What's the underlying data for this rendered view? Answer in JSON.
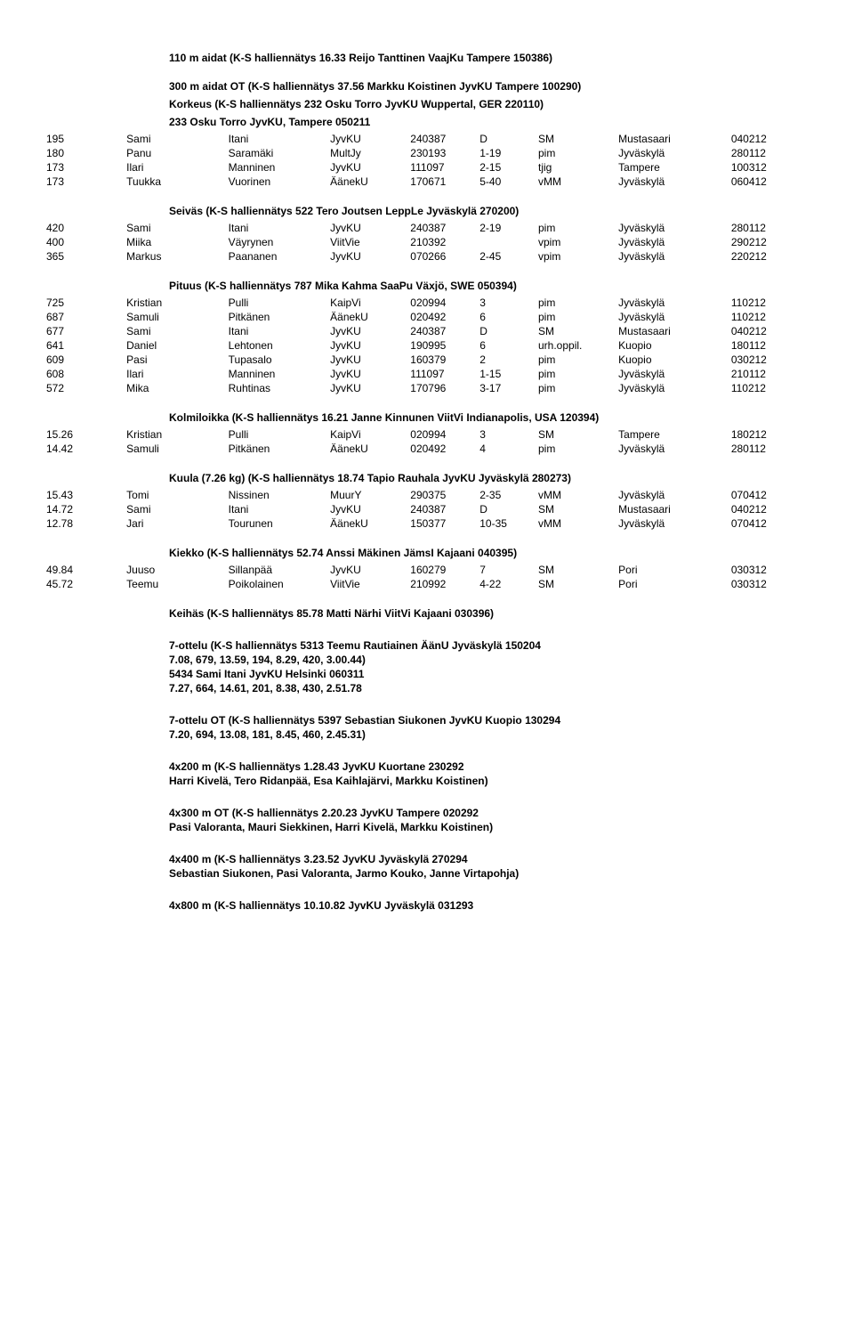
{
  "sections": [
    {
      "title": "110 m aidat (K-S halliennätys 16.33 Reijo Tanttinen VaajKu Tampere 150386)",
      "subtitles": [
        "300 m aidat OT (K-S halliennätys 37.56 Markku Koistinen JyvKU Tampere 100290)",
        "Korkeus (K-S halliennätys 232 Osku Torro JyvKU Wuppertal, GER 220110)",
        "233 Osku Torro  JyvKU, Tampere 050211"
      ],
      "rows": [
        [
          "195",
          "Sami",
          "Itani",
          "JyvKU",
          "240387",
          "D",
          "SM",
          "Mustasaari",
          "040212"
        ],
        [
          "180",
          "Panu",
          "Saramäki",
          "MultJy",
          "230193",
          "1-19",
          "pim",
          "Jyväskylä",
          "280112"
        ],
        [
          "173",
          "Ilari",
          "Manninen",
          "JyvKU",
          "111097",
          "2-15",
          "tjig",
          "Tampere",
          "100312"
        ],
        [
          "173",
          "Tuukka",
          "Vuorinen",
          "ÄänekU",
          "170671",
          "5-40",
          "vMM",
          "Jyväskylä",
          "060412"
        ]
      ]
    },
    {
      "title": "Seiväs (K-S halliennätys 522 Tero Joutsen LeppLe Jyväskylä 270200)",
      "rows": [
        [
          "420",
          "Sami",
          "Itani",
          "JyvKU",
          "240387",
          "2-19",
          "pim",
          "Jyväskylä",
          "280112"
        ],
        [
          "400",
          "Miika",
          "Väyrynen",
          "ViitVie",
          "210392",
          "",
          "vpim",
          "Jyväskylä",
          "290212"
        ],
        [
          "365",
          "Markus",
          "Paananen",
          "JyvKU",
          "070266",
          "2-45",
          "vpim",
          "Jyväskylä",
          "220212"
        ]
      ]
    },
    {
      "title": "Pituus (K-S halliennätys 787 Mika Kahma SaaPu Växjö, SWE 050394)",
      "rows": [
        [
          "725",
          "Kristian",
          "Pulli",
          "KaipVi",
          "020994",
          "3",
          "pim",
          "Jyväskylä",
          "110212"
        ],
        [
          "687",
          "Samuli",
          "Pitkänen",
          "ÄänekU",
          "020492",
          "6",
          "pim",
          "Jyväskylä",
          "110212"
        ],
        [
          "677",
          "Sami",
          "Itani",
          "JyvKU",
          "240387",
          "D",
          "SM",
          "Mustasaari",
          "040212"
        ],
        [
          "641",
          "Daniel",
          "Lehtonen",
          "JyvKU",
          "190995",
          "6",
          "urh.oppil.",
          "Kuopio",
          "180112"
        ],
        [
          "609",
          "Pasi",
          "Tupasalo",
          "JyvKU",
          "160379",
          "2",
          "pim",
          "Kuopio",
          "030212"
        ],
        [
          "608",
          "Ilari",
          "Manninen",
          "JyvKU",
          "111097",
          "1-15",
          "pim",
          "Jyväskylä",
          "210112"
        ],
        [
          "572",
          "Mika",
          "Ruhtinas",
          "JyvKU",
          "170796",
          "3-17",
          "pim",
          "Jyväskylä",
          "110212"
        ]
      ]
    },
    {
      "title": "Kolmiloikka (K-S halliennätys 16.21 Janne Kinnunen ViitVi Indianapolis, USA 120394)",
      "rows": [
        [
          "15.26",
          "Kristian",
          "Pulli",
          "KaipVi",
          "020994",
          "3",
          "SM",
          "Tampere",
          "180212"
        ],
        [
          "14.42",
          "Samuli",
          "Pitkänen",
          "ÄänekU",
          "020492",
          "4",
          "pim",
          "Jyväskylä",
          "280112"
        ]
      ]
    },
    {
      "title": "Kuula (7.26 kg) (K-S halliennätys 18.74 Tapio Rauhala JyvKU Jyväskylä 280273)",
      "rows": [
        [
          "15.43",
          "Tomi",
          "Nissinen",
          "MuurY",
          "290375",
          "2-35",
          "vMM",
          "Jyväskylä",
          "070412"
        ],
        [
          "14.72",
          "Sami",
          "Itani",
          "JyvKU",
          "240387",
          "D",
          "SM",
          "Mustasaari",
          "040212"
        ],
        [
          "12.78",
          "Jari",
          "Tourunen",
          "ÄänekU",
          "150377",
          "10-35",
          "vMM",
          "Jyväskylä",
          "070412"
        ]
      ]
    },
    {
      "title": "Kiekko (K-S halliennätys 52.74 Anssi Mäkinen JämsI Kajaani 040395)",
      "rows": [
        [
          "49.84",
          "Juuso",
          "Sillanpää",
          "JyvKU",
          "160279",
          "7",
          "SM",
          "Pori",
          "030312"
        ],
        [
          "45.72",
          "Teemu",
          "Poikolainen",
          "ViitVie",
          "210992",
          "4-22",
          "SM",
          "Pori",
          "030312"
        ]
      ]
    },
    {
      "title": "Keihäs (K-S halliennätys 85.78 Matti Närhi ViitVi Kajaani 030396)"
    }
  ],
  "blocks": [
    {
      "lines": [
        "7-ottelu (K-S halliennätys 5313 Teemu Rautiainen ÄänU Jyväskylä 150204",
        "7.08, 679, 13.59, 194, 8.29, 420, 3.00.44)",
        "5434 Sami Itani JyvKU  Helsinki  060311",
        "7.27, 664, 14.61, 201, 8.38, 430, 2.51.78"
      ]
    },
    {
      "lines": [
        "7-ottelu OT (K-S halliennätys 5397 Sebastian Siukonen JyvKU Kuopio 130294",
        "7.20, 694, 13.08, 181, 8.45, 460, 2.45.31)"
      ]
    },
    {
      "lines": [
        "4x200 m (K-S halliennätys 1.28.43 JyvKU Kuortane 230292",
        "Harri Kivelä, Tero Ridanpää, Esa Kaihlajärvi, Markku Koistinen)"
      ]
    },
    {
      "lines": [
        "4x300 m OT (K-S halliennätys 2.20.23 JyvKU Tampere 020292",
        "Pasi Valoranta, Mauri Siekkinen, Harri Kivelä, Markku Koistinen)"
      ]
    },
    {
      "lines": [
        "4x400 m (K-S halliennätys 3.23.52 JyvKU Jyväskylä 270294",
        "Sebastian Siukonen, Pasi Valoranta, Jarmo Kouko, Janne Virtapohja)"
      ]
    },
    {
      "lines": [
        "4x800 m (K-S halliennätys 10.10.82 JyvKU Jyväskylä 031293"
      ]
    }
  ]
}
